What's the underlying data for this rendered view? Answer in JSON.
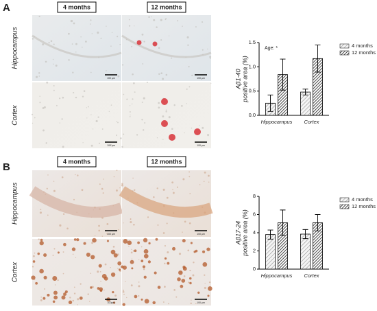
{
  "panels": [
    {
      "label": "A",
      "columns": [
        "4 months",
        "12 months"
      ],
      "rows": [
        "Hippocampus",
        "Cortex"
      ],
      "scale_bars": [
        "100 µm",
        "100 µm",
        "100 µm",
        "100 µm"
      ]
    },
    {
      "label": "B",
      "columns": [
        "4 months",
        "12 months"
      ],
      "rows": [
        "Hippocampus",
        "Cortex"
      ],
      "scale_bars": [
        "100 µm",
        "100 µm",
        "100µm",
        "100 µm"
      ]
    }
  ],
  "chart_data": [
    {
      "type": "bar",
      "ylabel": [
        "Aβ1-40",
        "positive area (%)"
      ],
      "annotation": "Age: *",
      "categories": [
        "Hippocampus",
        "Cortex"
      ],
      "series": [
        {
          "name": "4 months",
          "color": "#8a8a8a",
          "values": [
            0.25,
            0.48
          ],
          "errors": [
            0.17,
            0.06
          ]
        },
        {
          "name": "12 months",
          "color": "#303030",
          "values": [
            0.84,
            1.17
          ],
          "errors": [
            0.32,
            0.28
          ]
        }
      ],
      "ylim": [
        0,
        1.5
      ],
      "yticks": [
        {
          "value": 0,
          "label": "0.0"
        },
        {
          "value": 0.5,
          "label": "0.5"
        },
        {
          "value": 1,
          "label": "1.0"
        },
        {
          "value": 1.5,
          "label": "1.5"
        }
      ]
    },
    {
      "type": "bar",
      "ylabel": [
        "Aβ17-24",
        "positive area (%)"
      ],
      "categories": [
        "Hippocampus",
        "Cortex"
      ],
      "series": [
        {
          "name": "4 months",
          "color": "#8a8a8a",
          "values": [
            3.8,
            3.85
          ],
          "errors": [
            0.5,
            0.5
          ]
        },
        {
          "name": "12 months",
          "color": "#303030",
          "values": [
            5.1,
            5.1
          ],
          "errors": [
            1.4,
            0.9
          ]
        }
      ],
      "ylim": [
        0,
        8
      ],
      "yticks": [
        0,
        2,
        4,
        6,
        8
      ]
    }
  ]
}
